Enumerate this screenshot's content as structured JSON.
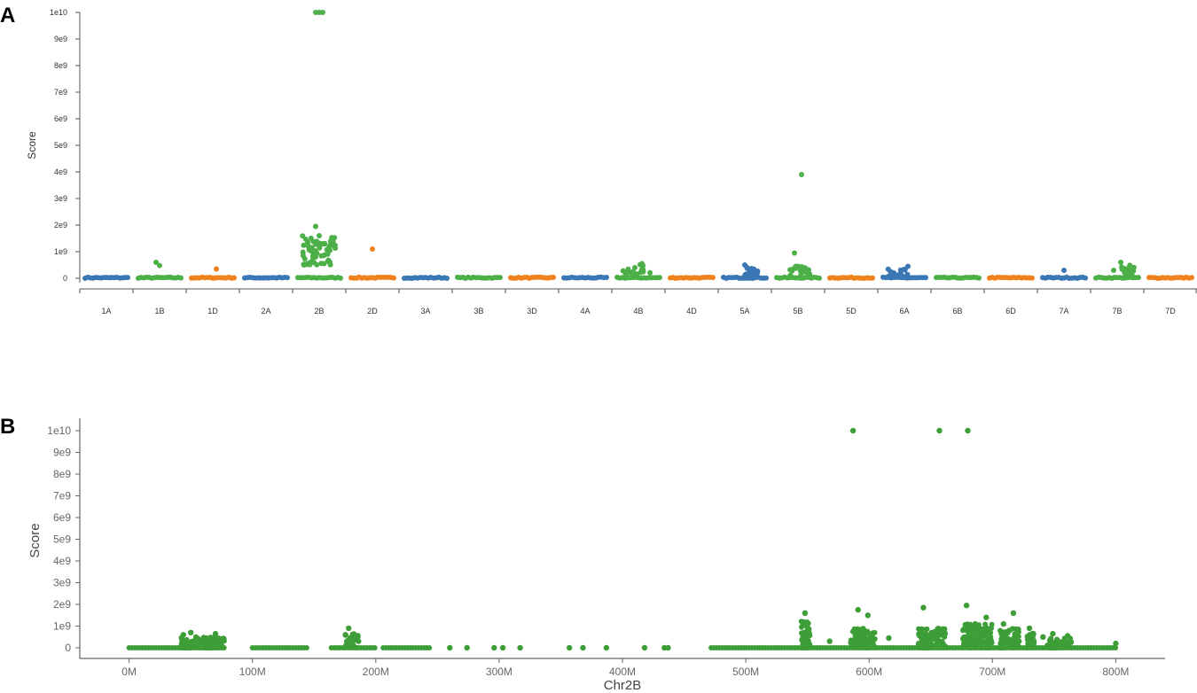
{
  "figure": {
    "panel_a_letter": "A",
    "panel_b_letter": "B"
  },
  "colors": {
    "blue": "#3a77b4",
    "green": "#4caf48",
    "orange": "#f0821d",
    "green_b": "#3d9e37",
    "axis": "#666666"
  },
  "chart_data": [
    {
      "type": "scatter",
      "title": "",
      "ylabel": "Score",
      "xlabel": "",
      "ylim": [
        0,
        10000000000
      ],
      "yticks": [
        0,
        1000000000,
        2000000000,
        3000000000,
        4000000000,
        5000000000,
        6000000000,
        7000000000,
        8000000000,
        9000000000,
        10000000000
      ],
      "ytick_labels": [
        "0",
        "1e9",
        "2e9",
        "3e9",
        "4e9",
        "5e9",
        "6e9",
        "7e9",
        "8e9",
        "9e9",
        "1e10"
      ],
      "grid": false,
      "categories": [
        "1A",
        "1B",
        "1D",
        "2A",
        "2B",
        "2D",
        "3A",
        "3B",
        "3D",
        "4A",
        "4B",
        "4D",
        "5A",
        "5B",
        "5D",
        "6A",
        "6B",
        "6D",
        "7A",
        "7B",
        "7D"
      ],
      "category_colors": [
        "blue",
        "green",
        "orange",
        "blue",
        "green",
        "orange",
        "blue",
        "green",
        "orange",
        "blue",
        "green",
        "orange",
        "blue",
        "green",
        "orange",
        "blue",
        "green",
        "orange",
        "blue",
        "green",
        "orange"
      ],
      "notable_points": [
        {
          "chromosome": "1B",
          "score": 600000000
        },
        {
          "chromosome": "1B",
          "score": 480000000
        },
        {
          "chromosome": "1D",
          "score": 350000000
        },
        {
          "chromosome": "2B",
          "score": 10000000000
        },
        {
          "chromosome": "2B",
          "score": 10000000000
        },
        {
          "chromosome": "2B",
          "score": 10000000000
        },
        {
          "chromosome": "2B",
          "score": 1950000000
        },
        {
          "chromosome": "2B",
          "score": 1600000000
        },
        {
          "chromosome": "2B",
          "score": 1300000000
        },
        {
          "chromosome": "2B",
          "score": 800000000
        },
        {
          "chromosome": "2D",
          "score": 1100000000
        },
        {
          "chromosome": "4B",
          "score": 550000000
        },
        {
          "chromosome": "4B",
          "score": 400000000
        },
        {
          "chromosome": "5A",
          "score": 500000000
        },
        {
          "chromosome": "5B",
          "score": 3900000000
        },
        {
          "chromosome": "5B",
          "score": 950000000
        },
        {
          "chromosome": "5B",
          "score": 450000000
        },
        {
          "chromosome": "6A",
          "score": 450000000
        },
        {
          "chromosome": "6A",
          "score": 300000000
        },
        {
          "chromosome": "7A",
          "score": 300000000
        },
        {
          "chromosome": "7B",
          "score": 600000000
        },
        {
          "chromosome": "7B",
          "score": 300000000
        }
      ]
    },
    {
      "type": "scatter",
      "title": "",
      "ylabel": "Score",
      "xlabel": "Chr2B",
      "xlim": [
        -40,
        840
      ],
      "ylim": [
        0,
        10000000000
      ],
      "x_unit": "Mb",
      "xticks": [
        0,
        100,
        200,
        300,
        400,
        500,
        600,
        700,
        800
      ],
      "xtick_labels": [
        "0M",
        "100M",
        "200M",
        "300M",
        "400M",
        "500M",
        "600M",
        "700M",
        "800M"
      ],
      "yticks": [
        0,
        1000000000,
        2000000000,
        3000000000,
        4000000000,
        5000000000,
        6000000000,
        7000000000,
        8000000000,
        9000000000,
        10000000000
      ],
      "ytick_labels": [
        "0",
        "1e9",
        "2e9",
        "3e9",
        "4e9",
        "5e9",
        "6e9",
        "7e9",
        "8e9",
        "9e9",
        "1e10"
      ],
      "grid": false,
      "points": [
        {
          "x": 587,
          "y": 10000000000
        },
        {
          "x": 657,
          "y": 10000000000
        },
        {
          "x": 680,
          "y": 10000000000
        },
        {
          "x": 679,
          "y": 1950000000
        },
        {
          "x": 644,
          "y": 1850000000
        },
        {
          "x": 591,
          "y": 1750000000
        },
        {
          "x": 548,
          "y": 1600000000
        },
        {
          "x": 717,
          "y": 1600000000
        },
        {
          "x": 599,
          "y": 1500000000
        },
        {
          "x": 695,
          "y": 1400000000
        },
        {
          "x": 709,
          "y": 1100000000
        },
        {
          "x": 686,
          "y": 1100000000
        },
        {
          "x": 178,
          "y": 900000000
        },
        {
          "x": 730,
          "y": 900000000
        },
        {
          "x": 50,
          "y": 700000000
        },
        {
          "x": 70,
          "y": 650000000
        },
        {
          "x": 749,
          "y": 650000000
        },
        {
          "x": 44,
          "y": 600000000
        },
        {
          "x": 761,
          "y": 550000000
        },
        {
          "x": 741,
          "y": 500000000
        },
        {
          "x": 55,
          "y": 450000000
        },
        {
          "x": 616,
          "y": 450000000
        },
        {
          "x": 75,
          "y": 400000000
        },
        {
          "x": 186,
          "y": 300000000
        },
        {
          "x": 568,
          "y": 300000000
        },
        {
          "x": 800,
          "y": 200000000
        },
        {
          "x": 260,
          "y": 0
        },
        {
          "x": 274,
          "y": 0
        },
        {
          "x": 296,
          "y": 0
        },
        {
          "x": 303,
          "y": 0
        },
        {
          "x": 317,
          "y": 0
        },
        {
          "x": 357,
          "y": 0
        },
        {
          "x": 368,
          "y": 0
        },
        {
          "x": 387,
          "y": 0
        },
        {
          "x": 418,
          "y": 0
        },
        {
          "x": 434,
          "y": 0
        },
        {
          "x": 437,
          "y": 0
        }
      ],
      "baseline_segments_mb": [
        [
          0,
          78
        ],
        [
          100,
          145
        ],
        [
          164,
          200
        ],
        [
          206,
          245
        ],
        [
          472,
          800
        ]
      ]
    }
  ]
}
